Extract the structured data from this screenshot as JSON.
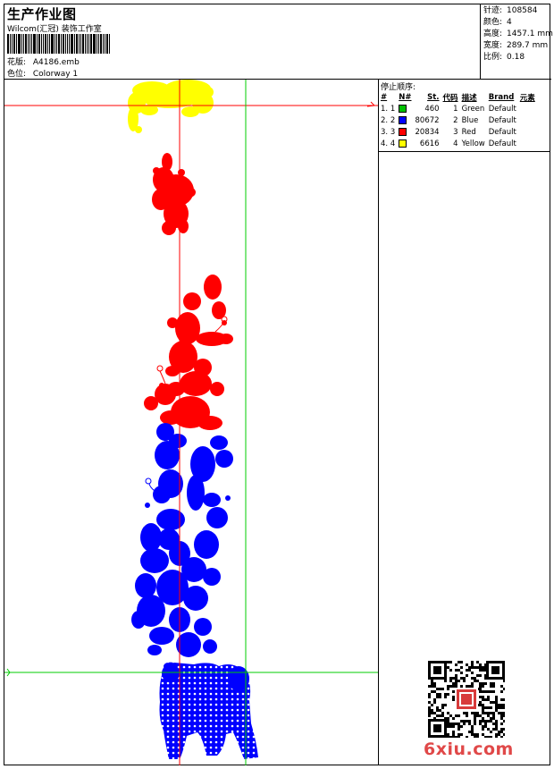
{
  "header": {
    "title": "生产作业图",
    "company": "Wilcom(汇冠) 装饰工作室",
    "design_label": "花版:",
    "design_value": "A4186.emb",
    "colorway_label": "色位:",
    "colorway_value": "Colorway 1"
  },
  "stats": [
    {
      "label": "针迹:",
      "value": "108584"
    },
    {
      "label": "颜色:",
      "value": "4"
    },
    {
      "label": "高度:",
      "value": "1457.1 mm"
    },
    {
      "label": "宽度:",
      "value": "289.7 mm"
    },
    {
      "label": "比例:",
      "value": "0.18"
    }
  ],
  "stop_sequence": {
    "title": "停止顺序:",
    "columns": [
      "#",
      "N#",
      "St.",
      "代码",
      "描述",
      "Brand",
      "元素"
    ],
    "rows": [
      {
        "idx": "1.",
        "n": "1",
        "color": "#00c000",
        "st": "460",
        "code": "1",
        "desc": "Green",
        "brand": "Default"
      },
      {
        "idx": "2.",
        "n": "2",
        "color": "#0000ff",
        "st": "80672",
        "code": "2",
        "desc": "Blue",
        "brand": "Default"
      },
      {
        "idx": "3.",
        "n": "3",
        "color": "#ff0000",
        "st": "20834",
        "code": "3",
        "desc": "Red",
        "brand": "Default"
      },
      {
        "idx": "4.",
        "n": "4",
        "color": "#ffff00",
        "st": "6616",
        "code": "4",
        "desc": "Yellow",
        "brand": "Default"
      }
    ]
  },
  "watermark": "6xiu.com",
  "colors": {
    "guide_red": "#ff0000",
    "guide_green": "#00cc00",
    "thread_yellow": "#ffff00",
    "thread_red": "#ff0000",
    "thread_blue": "#0000ff"
  }
}
